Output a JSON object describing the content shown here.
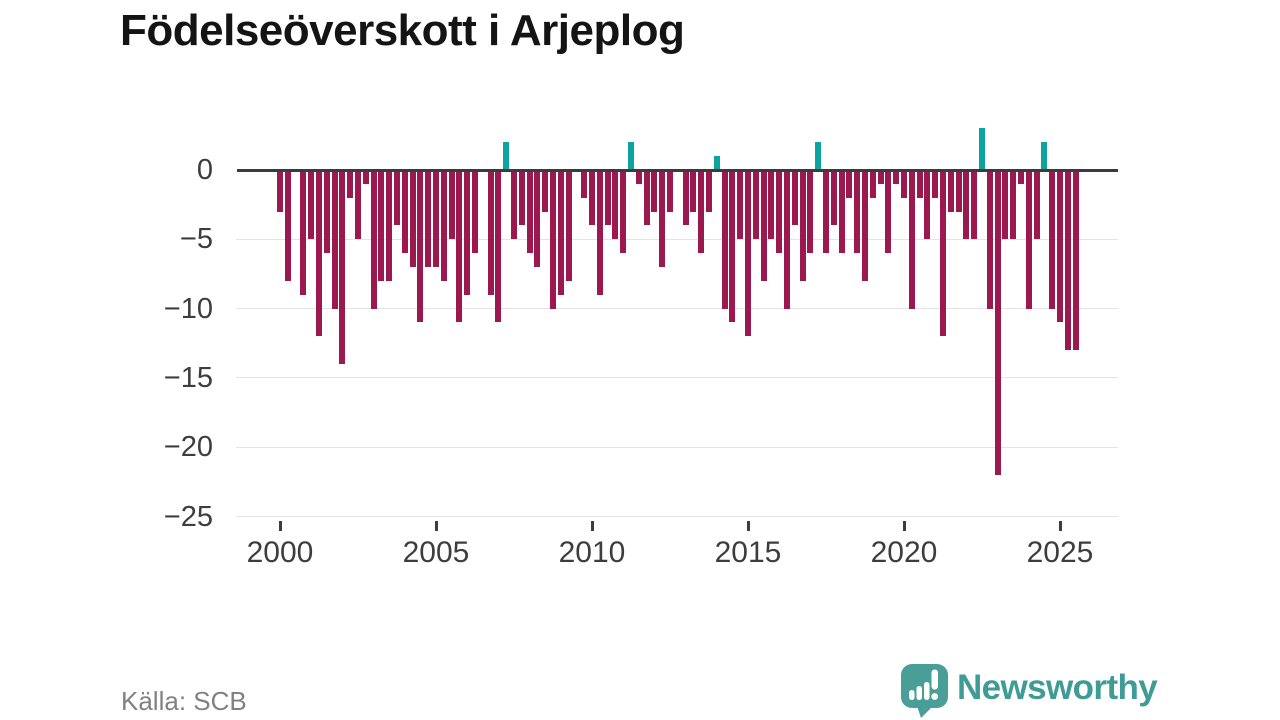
{
  "title": "Födelseöverskott i Arjeplog",
  "source": "Källa: SCB",
  "branding": {
    "name": "Newsworthy",
    "icon": "newsworthy-speech-bubble-barchart-icon",
    "color": "#3f9c95"
  },
  "colors": {
    "background": "#ffffff",
    "negative_bar": "#9c1950",
    "positive_bar": "#0da39f",
    "zero_axis": "#3b3b3b",
    "gridline": "#e4e4e4",
    "axis_text": "#3d3d3d",
    "title_text": "#141414",
    "source_text": "#818181"
  },
  "chart_data": {
    "type": "bar",
    "title": "Födelseöverskott i Arjeplog",
    "xlabel": "",
    "ylabel": "",
    "period": "quarterly",
    "x_start": 2000,
    "x_interval": 0.25,
    "ylim": [
      -25,
      3
    ],
    "grid": "horizontal",
    "legend": "none",
    "x_ticks": [
      2000,
      2005,
      2010,
      2015,
      2020,
      2025
    ],
    "x_tick_labels": [
      "2000",
      "2005",
      "2010",
      "2015",
      "2020",
      "2025"
    ],
    "y_ticks": [
      0,
      -5,
      -10,
      -15,
      -20,
      -25
    ],
    "y_tick_labels": [
      "0",
      "−5",
      "−10",
      "−15",
      "−20",
      "−25"
    ],
    "values": [
      -3,
      -8,
      0,
      -9,
      -5,
      -12,
      -6,
      -10,
      -14,
      -2,
      -5,
      -1,
      -10,
      -8,
      -8,
      -4,
      -6,
      -7,
      -11,
      -7,
      -7,
      -8,
      -5,
      -11,
      -9,
      -6,
      0,
      -9,
      -11,
      2,
      -5,
      -4,
      -6,
      -7,
      -3,
      -10,
      -9,
      -8,
      0,
      -2,
      -4,
      -9,
      -4,
      -5,
      -6,
      2,
      -1,
      -4,
      -3,
      -7,
      -3,
      0,
      -4,
      -3,
      -6,
      -3,
      1,
      -10,
      -11,
      -5,
      -12,
      -5,
      -8,
      -5,
      -6,
      -10,
      -4,
      -8,
      -6,
      2,
      -6,
      -4,
      -6,
      -2,
      -6,
      -8,
      -2,
      -1,
      -6,
      -1,
      -2,
      -10,
      -2,
      -5,
      -2,
      -12,
      -3,
      -3,
      -5,
      -5,
      3,
      -10,
      -22,
      -5,
      -5,
      -1,
      -10,
      -5,
      2,
      -10,
      -11,
      -13,
      -13
    ]
  }
}
